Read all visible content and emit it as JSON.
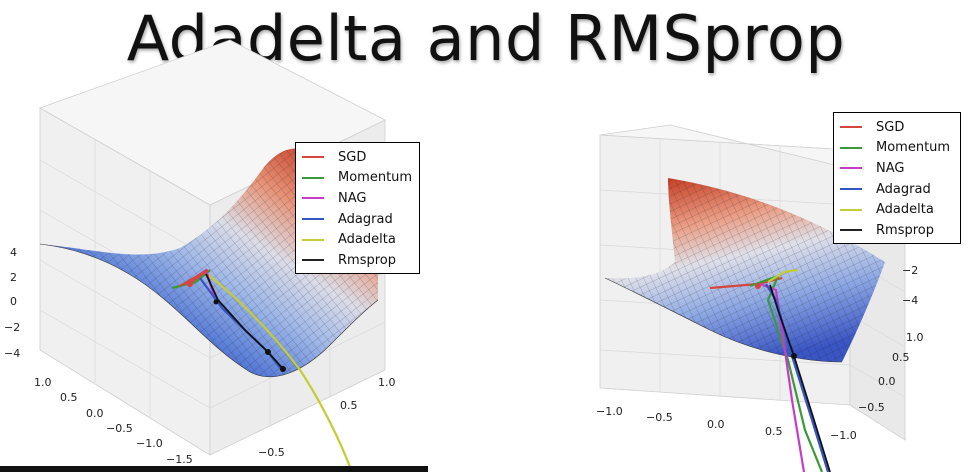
{
  "title": "Adadelta and RMSprop",
  "colors": {
    "SGD": "#d6473b",
    "Momentum": "#3a9a3a",
    "NAG": "#c43cc8",
    "Adagrad": "#3454c4",
    "Adadelta": "#c4cc34",
    "Rmsprop": "#222222"
  },
  "chart_data": [
    {
      "type": "surface3d",
      "legend_placement": "top-right",
      "legend": [
        "SGD",
        "Momentum",
        "NAG",
        "Adagrad",
        "Adadelta",
        "Rmsprop"
      ],
      "z_ticks": [
        "4",
        "2",
        "0",
        "−2",
        "−4"
      ],
      "y_ticks": [
        "1.0",
        "0.5",
        "0.0",
        "−0.5",
        "−1.0",
        "−1.5"
      ],
      "x_ticks": [
        "1.0",
        "0.5",
        "−0.5"
      ]
    },
    {
      "type": "surface3d",
      "legend_placement": "top-right",
      "legend": [
        "SGD",
        "Momentum",
        "NAG",
        "Adagrad",
        "Adadelta",
        "Rmsprop"
      ],
      "z_ticks": [
        "−2",
        "−4"
      ],
      "y_ticks": [
        "1.0",
        "0.5",
        "0.0",
        "−0.5",
        "−1.0"
      ],
      "x_ticks": [
        "−1.0",
        "−0.5",
        "0.0",
        "0.5"
      ]
    }
  ]
}
